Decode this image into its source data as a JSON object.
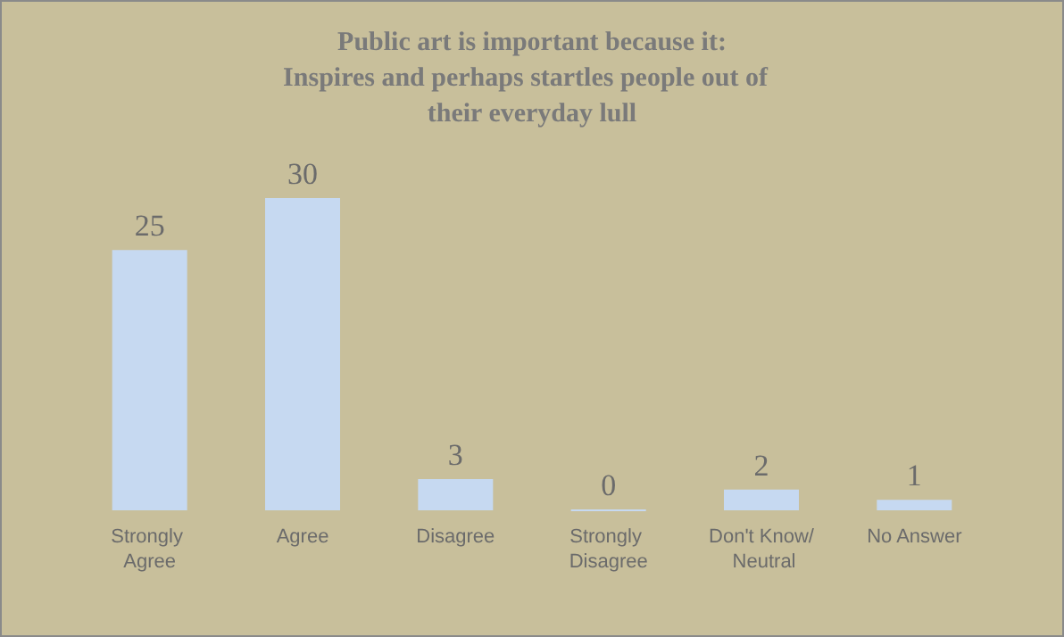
{
  "chart_data": {
    "type": "bar",
    "title": "Public art is important because it:\nInspires and perhaps startles people out of  their everyday lull",
    "categories": [
      "Strongly Agree",
      "Agree",
      "Disagree",
      "Strongly Disagree",
      "Don't Know/ Neutral",
      "No Answer"
    ],
    "values": [
      25,
      30,
      3,
      0,
      2,
      1
    ],
    "color": "#c6d9f1",
    "data_labels": true
  }
}
